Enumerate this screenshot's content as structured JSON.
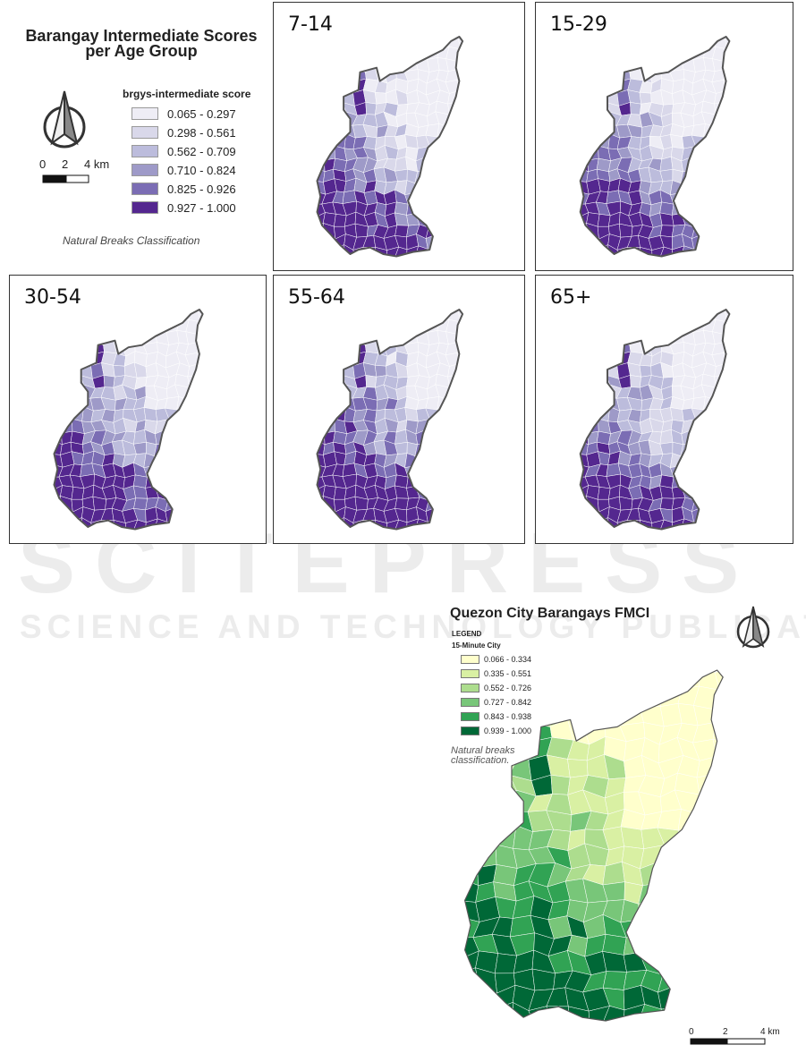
{
  "overview": {
    "title": "Barangay Intermediate Scores per Age Group",
    "legend_title": "brgys-intermediate score",
    "classes": [
      {
        "label": "0.065 - 0.297",
        "color": "#eeedf5"
      },
      {
        "label": "0.298 - 0.561",
        "color": "#d9d8ea"
      },
      {
        "label": "0.562 - 0.709",
        "color": "#bcbcdc"
      },
      {
        "label": "0.710 - 0.824",
        "color": "#9e9ac8"
      },
      {
        "label": "0.825 - 0.926",
        "color": "#7b6db4"
      },
      {
        "label": "0.927 - 1.000",
        "color": "#54278f"
      }
    ],
    "note": "Natural Breaks Classification",
    "scale_labels": [
      "0",
      "2",
      "4 km"
    ]
  },
  "panels": [
    {
      "label": "7-14",
      "variant": 0
    },
    {
      "label": "15-29",
      "variant": 1
    },
    {
      "label": "30-54",
      "variant": 2
    },
    {
      "label": "55-64",
      "variant": 3
    },
    {
      "label": "65+",
      "variant": 4
    }
  ],
  "fmci": {
    "title": "Quezon City Barangays FMCI",
    "legend_heading": "LEGEND",
    "legend_sub": "15-Minute City",
    "classes": [
      {
        "label": "0.066 - 0.334",
        "color": "#ffffcc"
      },
      {
        "label": "0.335 - 0.551",
        "color": "#d9f0a3"
      },
      {
        "label": "0.552 - 0.726",
        "color": "#addd8e"
      },
      {
        "label": "0.727 - 0.842",
        "color": "#78c679"
      },
      {
        "label": "0.843 - 0.938",
        "color": "#31a354"
      },
      {
        "label": "0.939 - 1.000",
        "color": "#006837"
      }
    ],
    "note": "Natural breaks classification.",
    "scale_labels": [
      "0",
      "2",
      "4 km"
    ]
  },
  "watermark": {
    "line1": "SCITEPRESS",
    "line2": "SCIENCE AND TECHNOLOGY PUBLICATIONS"
  }
}
